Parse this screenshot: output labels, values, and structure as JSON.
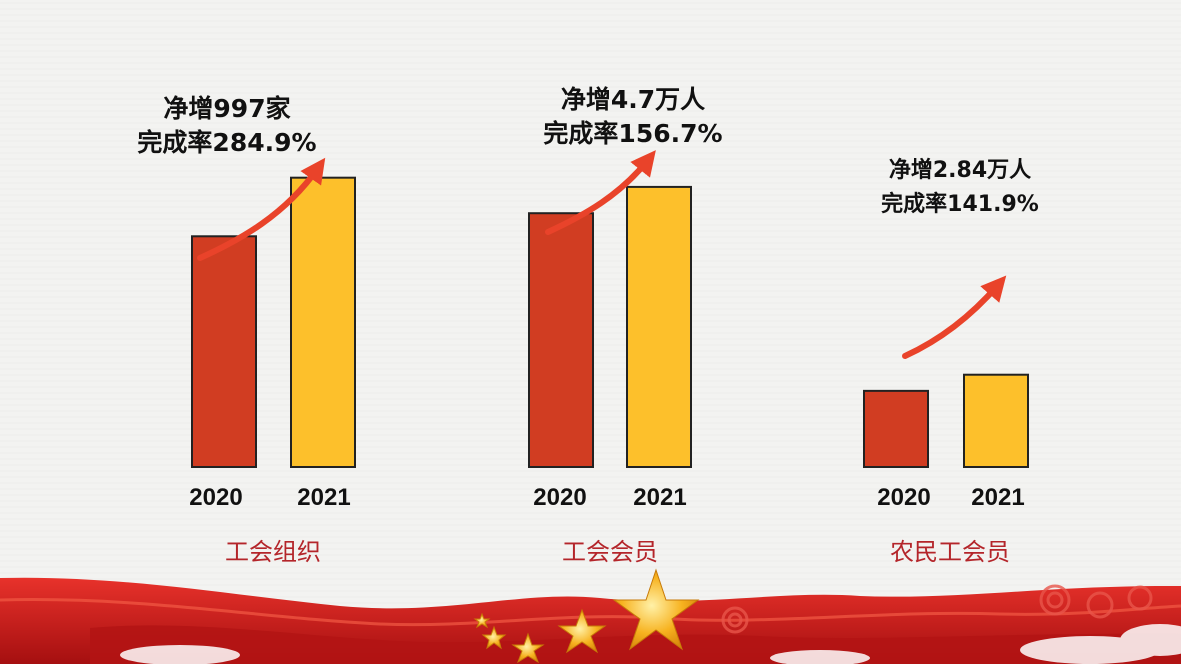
{
  "chart_data": [
    {
      "type": "bar",
      "title": "工会组织",
      "categories": [
        "2020",
        "2021"
      ],
      "values": [
        50,
        62.7
      ],
      "ylim": [
        0,
        70
      ],
      "annotation": [
        "净增997家",
        "完成率284.9%"
      ]
    },
    {
      "type": "bar",
      "title": "工会会员",
      "categories": [
        "2020",
        "2021"
      ],
      "values": [
        55,
        60.7
      ],
      "ylim": [
        0,
        70
      ],
      "annotation": [
        "净增4.7万人",
        "完成率156.7%"
      ]
    },
    {
      "type": "bar",
      "title": "农民工会员",
      "categories": [
        "2020",
        "2021"
      ],
      "values": [
        16.5,
        20
      ],
      "ylim": [
        0,
        70
      ],
      "annotation": [
        "净增2.84万人",
        "完成率141.9%"
      ]
    }
  ],
  "colors": {
    "bar_2020": "#d13d22",
    "bar_2021": "#fdc02b",
    "arrow": "#e9432a",
    "category_text": "#b4252a",
    "ribbon": "#cc1a1a",
    "star": "#f7b21f"
  },
  "decoration": [
    "red-ribbon-banner",
    "gold-stars",
    "clouds"
  ]
}
